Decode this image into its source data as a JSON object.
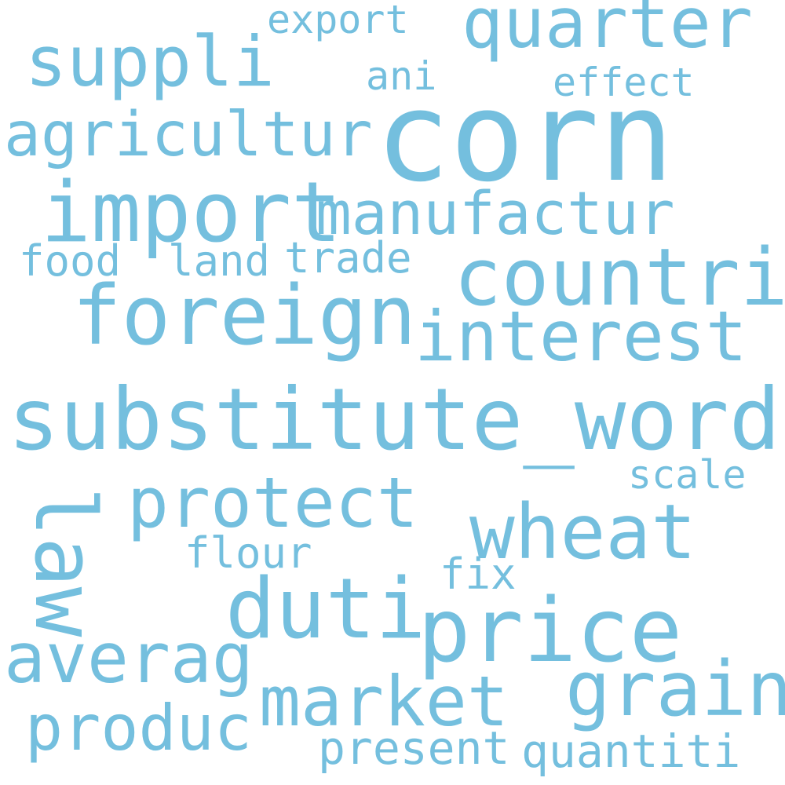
{
  "word_color": "#74bfde",
  "background_color": "#ffffff",
  "words": {
    "corn": "corn",
    "substitute_word": "substitute_word",
    "import": "import",
    "foreign": "foreign",
    "countri": "countri",
    "price": "price",
    "quarter": "quarter",
    "interest": "interest",
    "duti": "duti",
    "grain": "grain",
    "wheat": "wheat",
    "suppli": "suppli",
    "manufactur": "manufactur",
    "protect": "protect",
    "market": "market",
    "averag": "averag",
    "agricultur": "agricultur",
    "law": "law",
    "produc": "produc",
    "present": "present",
    "quantiti": "quantiti",
    "trade": "trade",
    "food": "food",
    "land": "land",
    "export": "export",
    "effect": "effect",
    "ani": "ani",
    "scale": "scale",
    "flour": "flour",
    "fix": "fix"
  }
}
